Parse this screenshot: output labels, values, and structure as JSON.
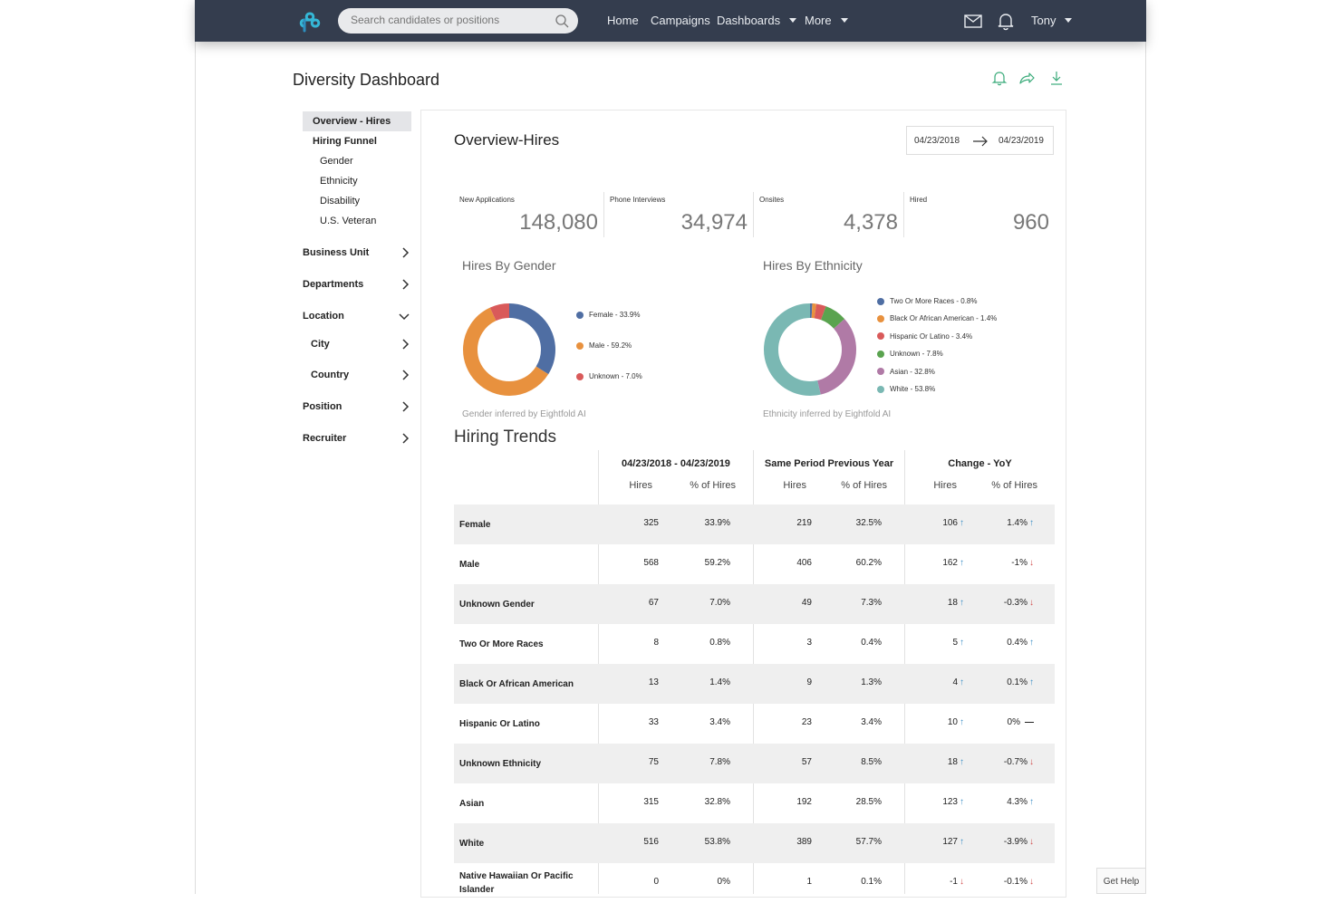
{
  "header": {
    "search_placeholder": "Search candidates or positions",
    "nav": {
      "home": "Home",
      "campaigns": "Campaigns",
      "dashboards": "Dashboards",
      "more": "More"
    },
    "user": "Tony"
  },
  "page": {
    "title": "Diversity Dashboard"
  },
  "sidebar": {
    "overview": "Overview - Hires",
    "funnel": "Hiring Funnel",
    "gender": "Gender",
    "ethnicity": "Ethnicity",
    "disability": "Disability",
    "veteran": "U.S. Veteran",
    "business_unit": "Business Unit",
    "departments": "Departments",
    "location": "Location",
    "city": "City",
    "country": "Country",
    "position": "Position",
    "recruiter": "Recruiter"
  },
  "overview": {
    "title": "Overview-Hires",
    "date_from": "04/23/2018",
    "date_to": "04/23/2019",
    "stats": [
      {
        "label": "New Applications",
        "value": "148,080"
      },
      {
        "label": "Phone Interviews",
        "value": "34,974"
      },
      {
        "label": "Onsites",
        "value": "4,378"
      },
      {
        "label": "Hired",
        "value": "960"
      }
    ]
  },
  "charts": {
    "gender_title": "Hires By Gender",
    "gender_note": "Gender inferred by Eightfold AI",
    "ethnicity_title": "Hires By Ethnicity",
    "ethnicity_note": "Ethnicity inferred by Eightfold AI"
  },
  "chart_data": [
    {
      "type": "pie",
      "title": "Hires By Gender",
      "series": [
        {
          "name": "Female - 33.9%",
          "value": 33.9,
          "color": "#4f6ea3"
        },
        {
          "name": "Male - 59.2%",
          "value": 59.2,
          "color": "#e8913e"
        },
        {
          "name": "Unknown - 7.0%",
          "value": 7.0,
          "color": "#d95a5a"
        }
      ]
    },
    {
      "type": "pie",
      "title": "Hires By Ethnicity",
      "series": [
        {
          "name": "Two Or More Races - 0.8%",
          "value": 0.8,
          "color": "#4f6ea3"
        },
        {
          "name": "Black Or African American - 1.4%",
          "value": 1.4,
          "color": "#e8913e"
        },
        {
          "name": "Hispanic Or Latino - 3.4%",
          "value": 3.4,
          "color": "#d95a5a"
        },
        {
          "name": "Unknown - 7.8%",
          "value": 7.8,
          "color": "#5aa34f"
        },
        {
          "name": "Asian - 32.8%",
          "value": 32.8,
          "color": "#b07aa6"
        },
        {
          "name": "White - 53.8%",
          "value": 53.8,
          "color": "#7ab8b3"
        }
      ]
    }
  ],
  "trends": {
    "title": "Hiring Trends",
    "groups": [
      "04/23/2018 - 04/23/2019",
      "Same Period Previous Year",
      "Change - YoY"
    ],
    "sub_hires": "Hires",
    "sub_pct": "% of Hires",
    "rows": [
      {
        "label": "Female",
        "h1": "325",
        "p1": "33.9%",
        "h2": "219",
        "p2": "32.5%",
        "ch": "106",
        "chd": "up",
        "cp": "1.4%",
        "cpd": "up"
      },
      {
        "label": "Male",
        "h1": "568",
        "p1": "59.2%",
        "h2": "406",
        "p2": "60.2%",
        "ch": "162",
        "chd": "up",
        "cp": "-1%",
        "cpd": "down"
      },
      {
        "label": "Unknown Gender",
        "h1": "67",
        "p1": "7.0%",
        "h2": "49",
        "p2": "7.3%",
        "ch": "18",
        "chd": "up",
        "cp": "-0.3%",
        "cpd": "down"
      },
      {
        "label": "Two Or More Races",
        "h1": "8",
        "p1": "0.8%",
        "h2": "3",
        "p2": "0.4%",
        "ch": "5",
        "chd": "up",
        "cp": "0.4%",
        "cpd": "up"
      },
      {
        "label": "Black Or African American",
        "h1": "13",
        "p1": "1.4%",
        "h2": "9",
        "p2": "1.3%",
        "ch": "4",
        "chd": "up",
        "cp": "0.1%",
        "cpd": "up"
      },
      {
        "label": "Hispanic Or Latino",
        "h1": "33",
        "p1": "3.4%",
        "h2": "23",
        "p2": "3.4%",
        "ch": "10",
        "chd": "up",
        "cp": "0%",
        "cpd": "flat"
      },
      {
        "label": "Unknown Ethnicity",
        "h1": "75",
        "p1": "7.8%",
        "h2": "57",
        "p2": "8.5%",
        "ch": "18",
        "chd": "up",
        "cp": "-0.7%",
        "cpd": "down"
      },
      {
        "label": "Asian",
        "h1": "315",
        "p1": "32.8%",
        "h2": "192",
        "p2": "28.5%",
        "ch": "123",
        "chd": "up",
        "cp": "4.3%",
        "cpd": "up"
      },
      {
        "label": "White",
        "h1": "516",
        "p1": "53.8%",
        "h2": "389",
        "p2": "57.7%",
        "ch": "127",
        "chd": "up",
        "cp": "-3.9%",
        "cpd": "down"
      },
      {
        "label": "Native Hawaiian Or Pacific Islander",
        "h1": "0",
        "p1": "0%",
        "h2": "1",
        "p2": "0.1%",
        "ch": "-1",
        "chd": "down",
        "cp": "-0.1%",
        "cpd": "down"
      }
    ]
  },
  "help": "Get Help"
}
